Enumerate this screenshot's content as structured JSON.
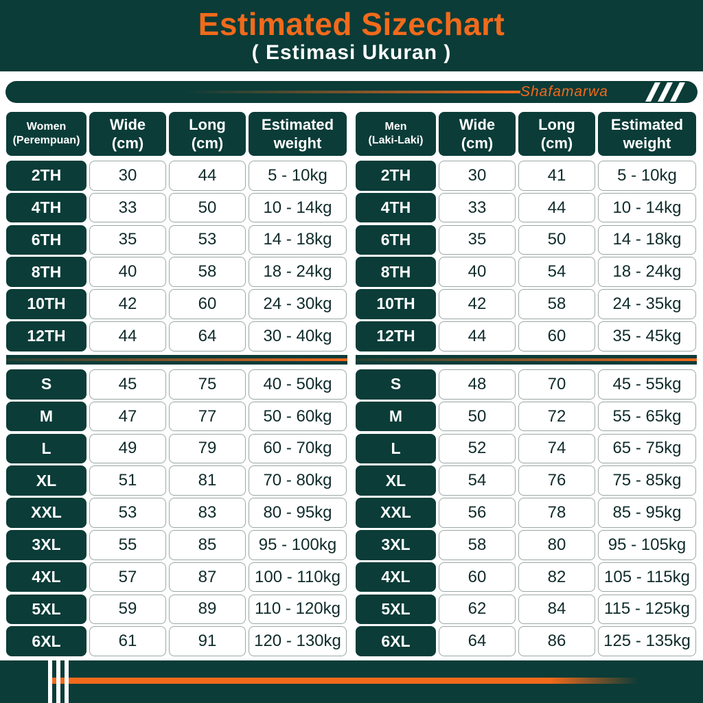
{
  "header": {
    "title": "Estimated Sizechart",
    "subtitle": "( Estimasi Ukuran )"
  },
  "brand": {
    "name": "Shafamarwa"
  },
  "colors": {
    "primary": "#0b3c38",
    "accent": "#f26a1b",
    "cell_border": "#9aa7a6"
  },
  "women": {
    "header": {
      "gender": "Women",
      "gender_sub": "(Perempuan)",
      "wide": "Wide",
      "wide_unit": "(cm)",
      "long": "Long",
      "long_unit": "(cm)",
      "weight": "Estimated",
      "weight_sub": "weight"
    },
    "kids": [
      {
        "size": "2TH",
        "wide": "30",
        "long": "44",
        "weight": "5 - 10kg"
      },
      {
        "size": "4TH",
        "wide": "33",
        "long": "50",
        "weight": "10 - 14kg"
      },
      {
        "size": "6TH",
        "wide": "35",
        "long": "53",
        "weight": "14 - 18kg"
      },
      {
        "size": "8TH",
        "wide": "40",
        "long": "58",
        "weight": "18 - 24kg"
      },
      {
        "size": "10TH",
        "wide": "42",
        "long": "60",
        "weight": "24 - 30kg"
      },
      {
        "size": "12TH",
        "wide": "44",
        "long": "64",
        "weight": "30 - 40kg"
      }
    ],
    "adults": [
      {
        "size": "S",
        "wide": "45",
        "long": "75",
        "weight": "40 - 50kg"
      },
      {
        "size": "M",
        "wide": "47",
        "long": "77",
        "weight": "50 - 60kg"
      },
      {
        "size": "L",
        "wide": "49",
        "long": "79",
        "weight": "60 - 70kg"
      },
      {
        "size": "XL",
        "wide": "51",
        "long": "81",
        "weight": "70 - 80kg"
      },
      {
        "size": "XXL",
        "wide": "53",
        "long": "83",
        "weight": "80 - 95kg"
      },
      {
        "size": "3XL",
        "wide": "55",
        "long": "85",
        "weight": "95 - 100kg"
      },
      {
        "size": "4XL",
        "wide": "57",
        "long": "87",
        "weight": "100 - 110kg"
      },
      {
        "size": "5XL",
        "wide": "59",
        "long": "89",
        "weight": "110 - 120kg"
      },
      {
        "size": "6XL",
        "wide": "61",
        "long": "91",
        "weight": "120 - 130kg"
      }
    ]
  },
  "men": {
    "header": {
      "gender": "Men",
      "gender_sub": "(Laki-Laki)",
      "wide": "Wide",
      "wide_unit": "(cm)",
      "long": "Long",
      "long_unit": "(cm)",
      "weight": "Estimated",
      "weight_sub": "weight"
    },
    "kids": [
      {
        "size": "2TH",
        "wide": "30",
        "long": "41",
        "weight": "5 - 10kg"
      },
      {
        "size": "4TH",
        "wide": "33",
        "long": "44",
        "weight": "10 - 14kg"
      },
      {
        "size": "6TH",
        "wide": "35",
        "long": "50",
        "weight": "14 - 18kg"
      },
      {
        "size": "8TH",
        "wide": "40",
        "long": "54",
        "weight": "18 - 24kg"
      },
      {
        "size": "10TH",
        "wide": "42",
        "long": "58",
        "weight": "24 - 35kg"
      },
      {
        "size": "12TH",
        "wide": "44",
        "long": "60",
        "weight": "35 - 45kg"
      }
    ],
    "adults": [
      {
        "size": "S",
        "wide": "48",
        "long": "70",
        "weight": "45 - 55kg"
      },
      {
        "size": "M",
        "wide": "50",
        "long": "72",
        "weight": "55 - 65kg"
      },
      {
        "size": "L",
        "wide": "52",
        "long": "74",
        "weight": "65 - 75kg"
      },
      {
        "size": "XL",
        "wide": "54",
        "long": "76",
        "weight": "75 - 85kg"
      },
      {
        "size": "XXL",
        "wide": "56",
        "long": "78",
        "weight": "85 - 95kg"
      },
      {
        "size": "3XL",
        "wide": "58",
        "long": "80",
        "weight": "95 - 105kg"
      },
      {
        "size": "4XL",
        "wide": "60",
        "long": "82",
        "weight": "105 - 115kg"
      },
      {
        "size": "5XL",
        "wide": "62",
        "long": "84",
        "weight": "115 - 125kg"
      },
      {
        "size": "6XL",
        "wide": "64",
        "long": "86",
        "weight": "125 - 135kg"
      }
    ]
  }
}
